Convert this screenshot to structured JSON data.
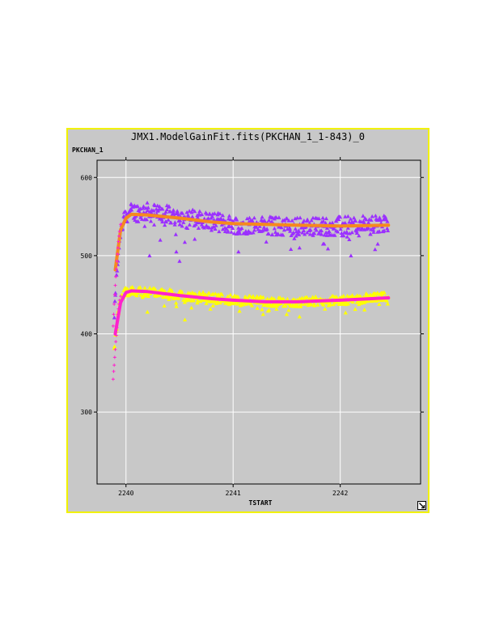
{
  "window": {
    "title": "JMX1.ModelGainFit.fits(PKCHAN_1_1-843)_0",
    "border_color": "#f2f200",
    "background_color": "#c8c8c8",
    "resize_icon": "resize-arrow-icon"
  },
  "chart_data": {
    "type": "scatter",
    "title": "JMX1.ModelGainFit.fits(PKCHAN_1_1-843)_0",
    "xlabel": "TSTART",
    "ylabel": "PKCHAN_1",
    "xlim": [
      2239.73,
      2242.75
    ],
    "ylim": [
      208,
      622
    ],
    "xticks": [
      2240,
      2241,
      2242
    ],
    "xtick_labels": [
      "2240",
      "2241",
      "2242"
    ],
    "yticks": [
      300,
      400,
      500,
      600
    ],
    "ytick_labels": [
      "300",
      "400",
      "500",
      "600"
    ],
    "grid": true,
    "legend": "none",
    "series": [
      {
        "marker": "triangle",
        "color": "#9b30ff",
        "x_start": 2239.89,
        "x_end": 2242.45,
        "baseline": [
          [
            2239.89,
            420
          ],
          [
            2239.92,
            490
          ],
          [
            2239.95,
            530
          ],
          [
            2240.0,
            555
          ],
          [
            2240.2,
            556
          ],
          [
            2240.5,
            550
          ],
          [
            2241.0,
            540
          ],
          [
            2241.5,
            537
          ],
          [
            2242.0,
            538
          ],
          [
            2242.45,
            540
          ]
        ],
        "scatter_spread": 12,
        "dip_points": [
          [
            2240.22,
            500
          ],
          [
            2240.5,
            493
          ],
          [
            2240.47,
            505
          ],
          [
            2240.32,
            520
          ],
          [
            2241.05,
            505
          ],
          [
            2241.62,
            510
          ],
          [
            2242.1,
            500
          ],
          [
            2241.84,
            515
          ],
          [
            2241.85,
            515
          ],
          [
            2242.35,
            515
          ]
        ]
      },
      {
        "marker": "line",
        "color": "#f5891f",
        "points": [
          [
            2239.9,
            482
          ],
          [
            2239.95,
            533
          ],
          [
            2240.0,
            548
          ],
          [
            2240.05,
            553
          ],
          [
            2240.2,
            552
          ],
          [
            2240.5,
            548
          ],
          [
            2240.8,
            543
          ],
          [
            2241.0,
            541
          ],
          [
            2241.3,
            540
          ],
          [
            2241.6,
            539
          ],
          [
            2242.0,
            538
          ],
          [
            2242.45,
            539
          ]
        ]
      },
      {
        "marker": "triangle",
        "color": "#ffff00",
        "x_start": 2239.89,
        "x_end": 2242.45,
        "baseline": [
          [
            2239.89,
            380
          ],
          [
            2239.92,
            420
          ],
          [
            2239.95,
            445
          ],
          [
            2240.0,
            455
          ],
          [
            2240.2,
            454
          ],
          [
            2240.5,
            450
          ],
          [
            2241.0,
            444
          ],
          [
            2241.5,
            440
          ],
          [
            2242.0,
            443
          ],
          [
            2242.45,
            448
          ]
        ],
        "scatter_spread": 6,
        "dip_points": [
          [
            2240.55,
            418
          ],
          [
            2241.28,
            425
          ],
          [
            2241.5,
            425
          ],
          [
            2241.62,
            422
          ],
          [
            2242.05,
            427
          ],
          [
            2240.2,
            428
          ]
        ]
      },
      {
        "marker": "line",
        "color": "#ff22cc",
        "points": [
          [
            2239.9,
            400
          ],
          [
            2239.95,
            440
          ],
          [
            2240.0,
            453
          ],
          [
            2240.05,
            455
          ],
          [
            2240.2,
            454
          ],
          [
            2240.5,
            449
          ],
          [
            2240.8,
            445
          ],
          [
            2241.0,
            443
          ],
          [
            2241.3,
            441
          ],
          [
            2241.6,
            441
          ],
          [
            2242.0,
            443
          ],
          [
            2242.45,
            446
          ]
        ]
      },
      {
        "marker": "plus",
        "color": "#ff22cc",
        "points": [
          [
            2239.88,
            342
          ],
          [
            2239.885,
            352
          ],
          [
            2239.89,
            360
          ],
          [
            2239.895,
            370
          ],
          [
            2239.9,
            380
          ],
          [
            2239.905,
            390
          ],
          [
            2239.91,
            398
          ],
          [
            2239.915,
            408
          ],
          [
            2239.92,
            417
          ],
          [
            2239.925,
            425
          ],
          [
            2239.93,
            432
          ],
          [
            2239.935,
            438
          ],
          [
            2239.94,
            443
          ],
          [
            2239.95,
            448
          ]
        ]
      },
      {
        "marker": "plus",
        "color": "#ff22cc",
        "points": [
          [
            2239.88,
            410
          ],
          [
            2239.885,
            425
          ],
          [
            2239.89,
            438
          ],
          [
            2239.895,
            450
          ],
          [
            2239.9,
            462
          ],
          [
            2239.905,
            473
          ],
          [
            2239.91,
            483
          ],
          [
            2239.915,
            493
          ],
          [
            2239.92,
            502
          ],
          [
            2239.925,
            510
          ],
          [
            2239.93,
            518
          ],
          [
            2239.935,
            525
          ],
          [
            2239.94,
            531
          ],
          [
            2239.95,
            540
          ]
        ]
      }
    ]
  }
}
